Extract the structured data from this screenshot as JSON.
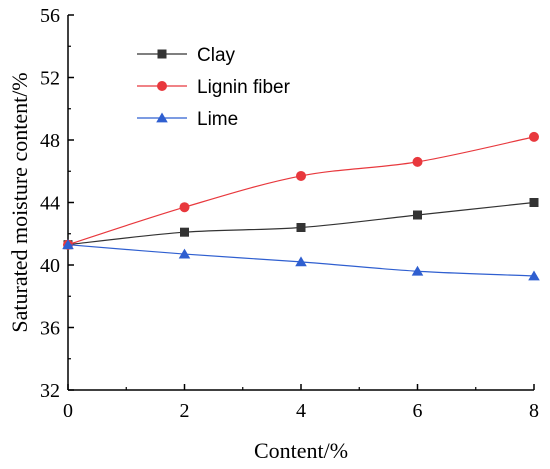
{
  "chart_data": {
    "type": "line",
    "title": "",
    "xlabel": "Content/%",
    "ylabel": "Saturated moisture content/%",
    "x": [
      0,
      2,
      4,
      6,
      8
    ],
    "xlim": [
      0,
      8
    ],
    "ylim": [
      32,
      56
    ],
    "xticks": [
      "0",
      "2",
      "4",
      "6",
      "8"
    ],
    "yticks": [
      "32",
      "36",
      "40",
      "44",
      "48",
      "52",
      "56"
    ],
    "grid": false,
    "legend_position": "top-left",
    "series": [
      {
        "name": "Clay",
        "values": [
          41.3,
          42.1,
          42.4,
          43.2,
          44.0
        ],
        "color": "#333333",
        "marker": "square"
      },
      {
        "name": "Lignin fiber",
        "values": [
          41.3,
          43.7,
          45.7,
          46.6,
          48.2
        ],
        "color": "#e8383d",
        "marker": "circle"
      },
      {
        "name": "Lime",
        "values": [
          41.3,
          40.7,
          40.2,
          39.6,
          39.3
        ],
        "color": "#2f5fd0",
        "marker": "triangle"
      }
    ]
  }
}
